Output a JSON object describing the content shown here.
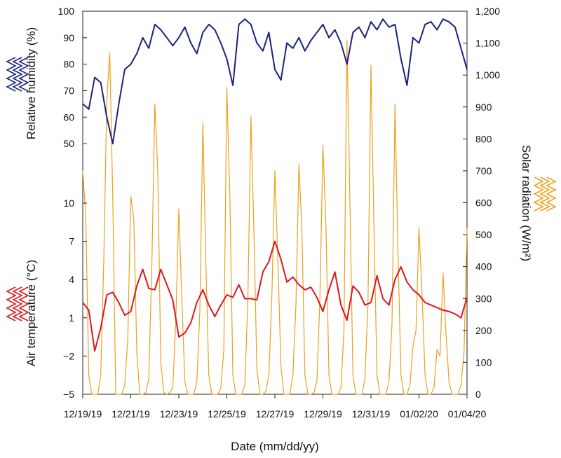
{
  "chart_data": {
    "type": "line",
    "xlabel": "Date (mm/dd/yy)",
    "x_ticks": [
      "12/19/19",
      "12/21/19",
      "12/23/19",
      "12/25/19",
      "12/27/19",
      "12/29/19",
      "12/31/19",
      "01/02/20",
      "01/04/20"
    ],
    "x_range": [
      "12/19/19",
      "01/04/20"
    ],
    "grid": false,
    "legend": "none (colored zigzag line swatches beside each axis title)",
    "axes": {
      "humidity": {
        "label": "Relative humidity (%)",
        "side": "left-top",
        "ticks": [
          "100",
          "90",
          "80",
          "70",
          "60",
          "50"
        ],
        "ylim": [
          45,
          100
        ],
        "color": "#1a237e"
      },
      "temperature": {
        "label": "Air temperature (°C)",
        "side": "left-bottom",
        "ticks": [
          "10",
          "7",
          "4",
          "1",
          "−2",
          "−5"
        ],
        "ylim": [
          -5,
          10
        ],
        "color": "#e0161b"
      },
      "radiation": {
        "label": "Solar radiation (W/m²)",
        "side": "right",
        "ticks": [
          "1,200",
          "1,100",
          "1,000",
          "900",
          "800",
          "700",
          "600",
          "500",
          "400",
          "300",
          "200",
          "100",
          "0"
        ],
        "ylim": [
          0,
          1200
        ],
        "color": "#eda01a"
      }
    },
    "series": [
      {
        "axis": "humidity",
        "color": "#1a237e",
        "x": [
          "12/19/19 00:00",
          "12/19/19 06:00",
          "12/19/19 12:00",
          "12/19/19 18:00",
          "12/20/19 00:00",
          "12/20/19 06:00",
          "12/20/19 12:00",
          "12/20/19 18:00",
          "12/21/19 00:00",
          "12/21/19 06:00",
          "12/21/19 12:00",
          "12/21/19 18:00",
          "12/22/19 00:00",
          "12/22/19 06:00",
          "12/22/19 12:00",
          "12/22/19 18:00",
          "12/23/19 00:00",
          "12/23/19 06:00",
          "12/23/19 12:00",
          "12/23/19 18:00",
          "12/24/19 00:00",
          "12/24/19 06:00",
          "12/24/19 12:00",
          "12/24/19 18:00",
          "12/25/19 00:00",
          "12/25/19 06:00",
          "12/25/19 12:00",
          "12/25/19 18:00",
          "12/26/19 00:00",
          "12/26/19 06:00",
          "12/26/19 12:00",
          "12/26/19 18:00",
          "12/27/19 00:00",
          "12/27/19 06:00",
          "12/27/19 12:00",
          "12/27/19 18:00",
          "12/28/19 00:00",
          "12/28/19 06:00",
          "12/28/19 12:00",
          "12/28/19 18:00",
          "12/29/19 00:00",
          "12/29/19 06:00",
          "12/29/19 12:00",
          "12/29/19 18:00",
          "12/30/19 00:00",
          "12/30/19 06:00",
          "12/30/19 12:00",
          "12/30/19 18:00",
          "12/31/19 00:00",
          "12/31/19 06:00",
          "12/31/19 12:00",
          "12/31/19 18:00",
          "01/01/20 00:00",
          "01/01/20 06:00",
          "01/01/20 12:00",
          "01/01/20 18:00",
          "01/02/20 00:00",
          "01/02/20 06:00",
          "01/02/20 12:00",
          "01/02/20 18:00",
          "01/03/20 00:00",
          "01/03/20 06:00",
          "01/03/20 12:00",
          "01/03/20 18:00",
          "01/04/20 00:00"
        ],
        "values": [
          65,
          63,
          75,
          73,
          60,
          50,
          65,
          78,
          80,
          84,
          90,
          86,
          95,
          93,
          90,
          87,
          90,
          94,
          88,
          84,
          92,
          95,
          93,
          88,
          82,
          72,
          95,
          97,
          95,
          88,
          85,
          92,
          78,
          74,
          88,
          86,
          90,
          85,
          89,
          92,
          95,
          90,
          93,
          88,
          80,
          92,
          94,
          90,
          96,
          93,
          97,
          94,
          95,
          82,
          72,
          90,
          88,
          95,
          96,
          93,
          97,
          96,
          94,
          86,
          78
        ]
      },
      {
        "axis": "temperature",
        "color": "#e0161b",
        "x": [
          "12/19/19 00:00",
          "12/19/19 06:00",
          "12/19/19 12:00",
          "12/19/19 18:00",
          "12/20/19 00:00",
          "12/20/19 06:00",
          "12/20/19 12:00",
          "12/20/19 18:00",
          "12/21/19 00:00",
          "12/21/19 06:00",
          "12/21/19 12:00",
          "12/21/19 18:00",
          "12/22/19 00:00",
          "12/22/19 06:00",
          "12/22/19 12:00",
          "12/22/19 18:00",
          "12/23/19 00:00",
          "12/23/19 06:00",
          "12/23/19 12:00",
          "12/23/19 18:00",
          "12/24/19 00:00",
          "12/24/19 06:00",
          "12/24/19 12:00",
          "12/24/19 18:00",
          "12/25/19 00:00",
          "12/25/19 06:00",
          "12/25/19 12:00",
          "12/25/19 18:00",
          "12/26/19 00:00",
          "12/26/19 06:00",
          "12/26/19 12:00",
          "12/26/19 18:00",
          "12/27/19 00:00",
          "12/27/19 06:00",
          "12/27/19 12:00",
          "12/27/19 18:00",
          "12/28/19 00:00",
          "12/28/19 06:00",
          "12/28/19 12:00",
          "12/28/19 18:00",
          "12/29/19 00:00",
          "12/29/19 06:00",
          "12/29/19 12:00",
          "12/29/19 18:00",
          "12/30/19 00:00",
          "12/30/19 06:00",
          "12/30/19 12:00",
          "12/30/19 18:00",
          "12/31/19 00:00",
          "12/31/19 06:00",
          "12/31/19 12:00",
          "12/31/19 18:00",
          "01/01/20 00:00",
          "01/01/20 06:00",
          "01/01/20 12:00",
          "01/01/20 18:00",
          "01/02/20 00:00",
          "01/02/20 06:00",
          "01/02/20 12:00",
          "01/02/20 18:00",
          "01/03/20 00:00",
          "01/03/20 06:00",
          "01/03/20 12:00",
          "01/03/20 18:00",
          "01/04/20 00:00"
        ],
        "values": [
          2.2,
          1.6,
          -1.6,
          0.2,
          2.8,
          3.0,
          2.2,
          1.2,
          1.5,
          3.5,
          4.8,
          3.3,
          3.2,
          4.8,
          3.6,
          2.4,
          -0.5,
          -0.2,
          0.6,
          2.2,
          3.2,
          2.0,
          1.1,
          2.0,
          2.8,
          2.6,
          3.6,
          2.5,
          2.5,
          2.4,
          4.6,
          5.4,
          7.0,
          5.6,
          3.8,
          4.2,
          3.6,
          3.2,
          3.4,
          2.6,
          1.5,
          3.2,
          4.6,
          2.0,
          0.8,
          3.5,
          3.0,
          2.0,
          2.2,
          4.3,
          2.5,
          2.0,
          4.0,
          5.0,
          3.8,
          3.2,
          2.8,
          2.2,
          2.0,
          1.8,
          1.6,
          1.5,
          1.3,
          1.0,
          2.6
        ]
      },
      {
        "axis": "radiation",
        "color": "#eda01a",
        "x": [
          "12/19/19 00:00",
          "12/19/19 03:00",
          "12/19/19 06:00",
          "12/19/19 09:00",
          "12/19/19 12:00",
          "12/19/19 15:00",
          "12/19/19 18:00",
          "12/19/19 21:00",
          "12/20/19 00:00",
          "12/20/19 03:00",
          "12/20/19 06:00",
          "12/20/19 09:00",
          "12/20/19 12:00",
          "12/20/19 15:00",
          "12/20/19 18:00",
          "12/20/19 21:00",
          "12/21/19 00:00",
          "12/21/19 03:00",
          "12/21/19 06:00",
          "12/21/19 09:00",
          "12/21/19 12:00",
          "12/21/19 15:00",
          "12/21/19 18:00",
          "12/21/19 21:00",
          "12/22/19 00:00",
          "12/22/19 03:00",
          "12/22/19 06:00",
          "12/22/19 09:00",
          "12/22/19 12:00",
          "12/22/19 15:00",
          "12/22/19 18:00",
          "12/22/19 21:00",
          "12/23/19 00:00",
          "12/23/19 03:00",
          "12/23/19 06:00",
          "12/23/19 09:00",
          "12/23/19 12:00",
          "12/23/19 15:00",
          "12/23/19 18:00",
          "12/23/19 21:00",
          "12/24/19 00:00",
          "12/24/19 03:00",
          "12/24/19 06:00",
          "12/24/19 09:00",
          "12/24/19 12:00",
          "12/24/19 15:00",
          "12/24/19 18:00",
          "12/24/19 21:00",
          "12/25/19 00:00",
          "12/25/19 03:00",
          "12/25/19 06:00",
          "12/25/19 09:00",
          "12/25/19 12:00",
          "12/25/19 15:00",
          "12/25/19 18:00",
          "12/25/19 21:00",
          "12/26/19 00:00",
          "12/26/19 03:00",
          "12/26/19 06:00",
          "12/26/19 09:00",
          "12/26/19 12:00",
          "12/26/19 15:00",
          "12/26/19 18:00",
          "12/26/19 21:00",
          "12/27/19 00:00",
          "12/27/19 03:00",
          "12/27/19 06:00",
          "12/27/19 09:00",
          "12/27/19 12:00",
          "12/27/19 15:00",
          "12/27/19 18:00",
          "12/27/19 21:00",
          "12/28/19 00:00",
          "12/28/19 03:00",
          "12/28/19 06:00",
          "12/28/19 09:00",
          "12/28/19 12:00",
          "12/28/19 15:00",
          "12/28/19 18:00",
          "12/28/19 21:00",
          "12/29/19 00:00",
          "12/29/19 03:00",
          "12/29/19 06:00",
          "12/29/19 09:00",
          "12/29/19 12:00",
          "12/29/19 15:00",
          "12/29/19 18:00",
          "12/29/19 21:00",
          "12/30/19 00:00",
          "12/30/19 03:00",
          "12/30/19 06:00",
          "12/30/19 09:00",
          "12/30/19 12:00",
          "12/30/19 15:00",
          "12/30/19 18:00",
          "12/30/19 21:00",
          "12/31/19 00:00",
          "12/31/19 03:00",
          "12/31/19 06:00",
          "12/31/19 09:00",
          "12/31/19 12:00",
          "12/31/19 15:00",
          "12/31/19 18:00",
          "12/31/19 21:00",
          "01/01/20 00:00",
          "01/01/20 03:00",
          "01/01/20 06:00",
          "01/01/20 09:00",
          "01/01/20 12:00",
          "01/01/20 15:00",
          "01/01/20 18:00",
          "01/01/20 21:00",
          "01/02/20 00:00",
          "01/02/20 03:00",
          "01/02/20 06:00",
          "01/02/20 09:00",
          "01/02/20 12:00",
          "01/02/20 15:00",
          "01/02/20 18:00",
          "01/02/20 21:00",
          "01/03/20 00:00",
          "01/03/20 03:00",
          "01/03/20 06:00",
          "01/03/20 09:00",
          "01/03/20 12:00",
          "01/03/20 15:00",
          "01/03/20 18:00",
          "01/03/20 21:00",
          "01/04/20 00:00"
        ],
        "values": [
          700,
          560,
          60,
          0,
          0,
          0,
          60,
          420,
          920,
          1070,
          620,
          0,
          0,
          0,
          30,
          170,
          620,
          550,
          130,
          0,
          0,
          5,
          50,
          400,
          910,
          700,
          100,
          5,
          0,
          5,
          20,
          230,
          580,
          300,
          40,
          0,
          0,
          0,
          40,
          260,
          850,
          420,
          60,
          0,
          0,
          0,
          20,
          140,
          960,
          620,
          60,
          0,
          0,
          0,
          30,
          300,
          870,
          520,
          80,
          0,
          0,
          10,
          60,
          310,
          700,
          420,
          90,
          0,
          0,
          0,
          60,
          280,
          720,
          520,
          60,
          0,
          0,
          5,
          40,
          300,
          780,
          530,
          60,
          0,
          0,
          0,
          20,
          200,
          1110,
          600,
          60,
          0,
          0,
          0,
          50,
          280,
          1030,
          520,
          60,
          0,
          0,
          0,
          40,
          220,
          910,
          450,
          60,
          0,
          0,
          30,
          150,
          200,
          520,
          320,
          60,
          0,
          0,
          20,
          140,
          120,
          380,
          190,
          40,
          0,
          0,
          0,
          30,
          130,
          520
        ]
      }
    ]
  }
}
